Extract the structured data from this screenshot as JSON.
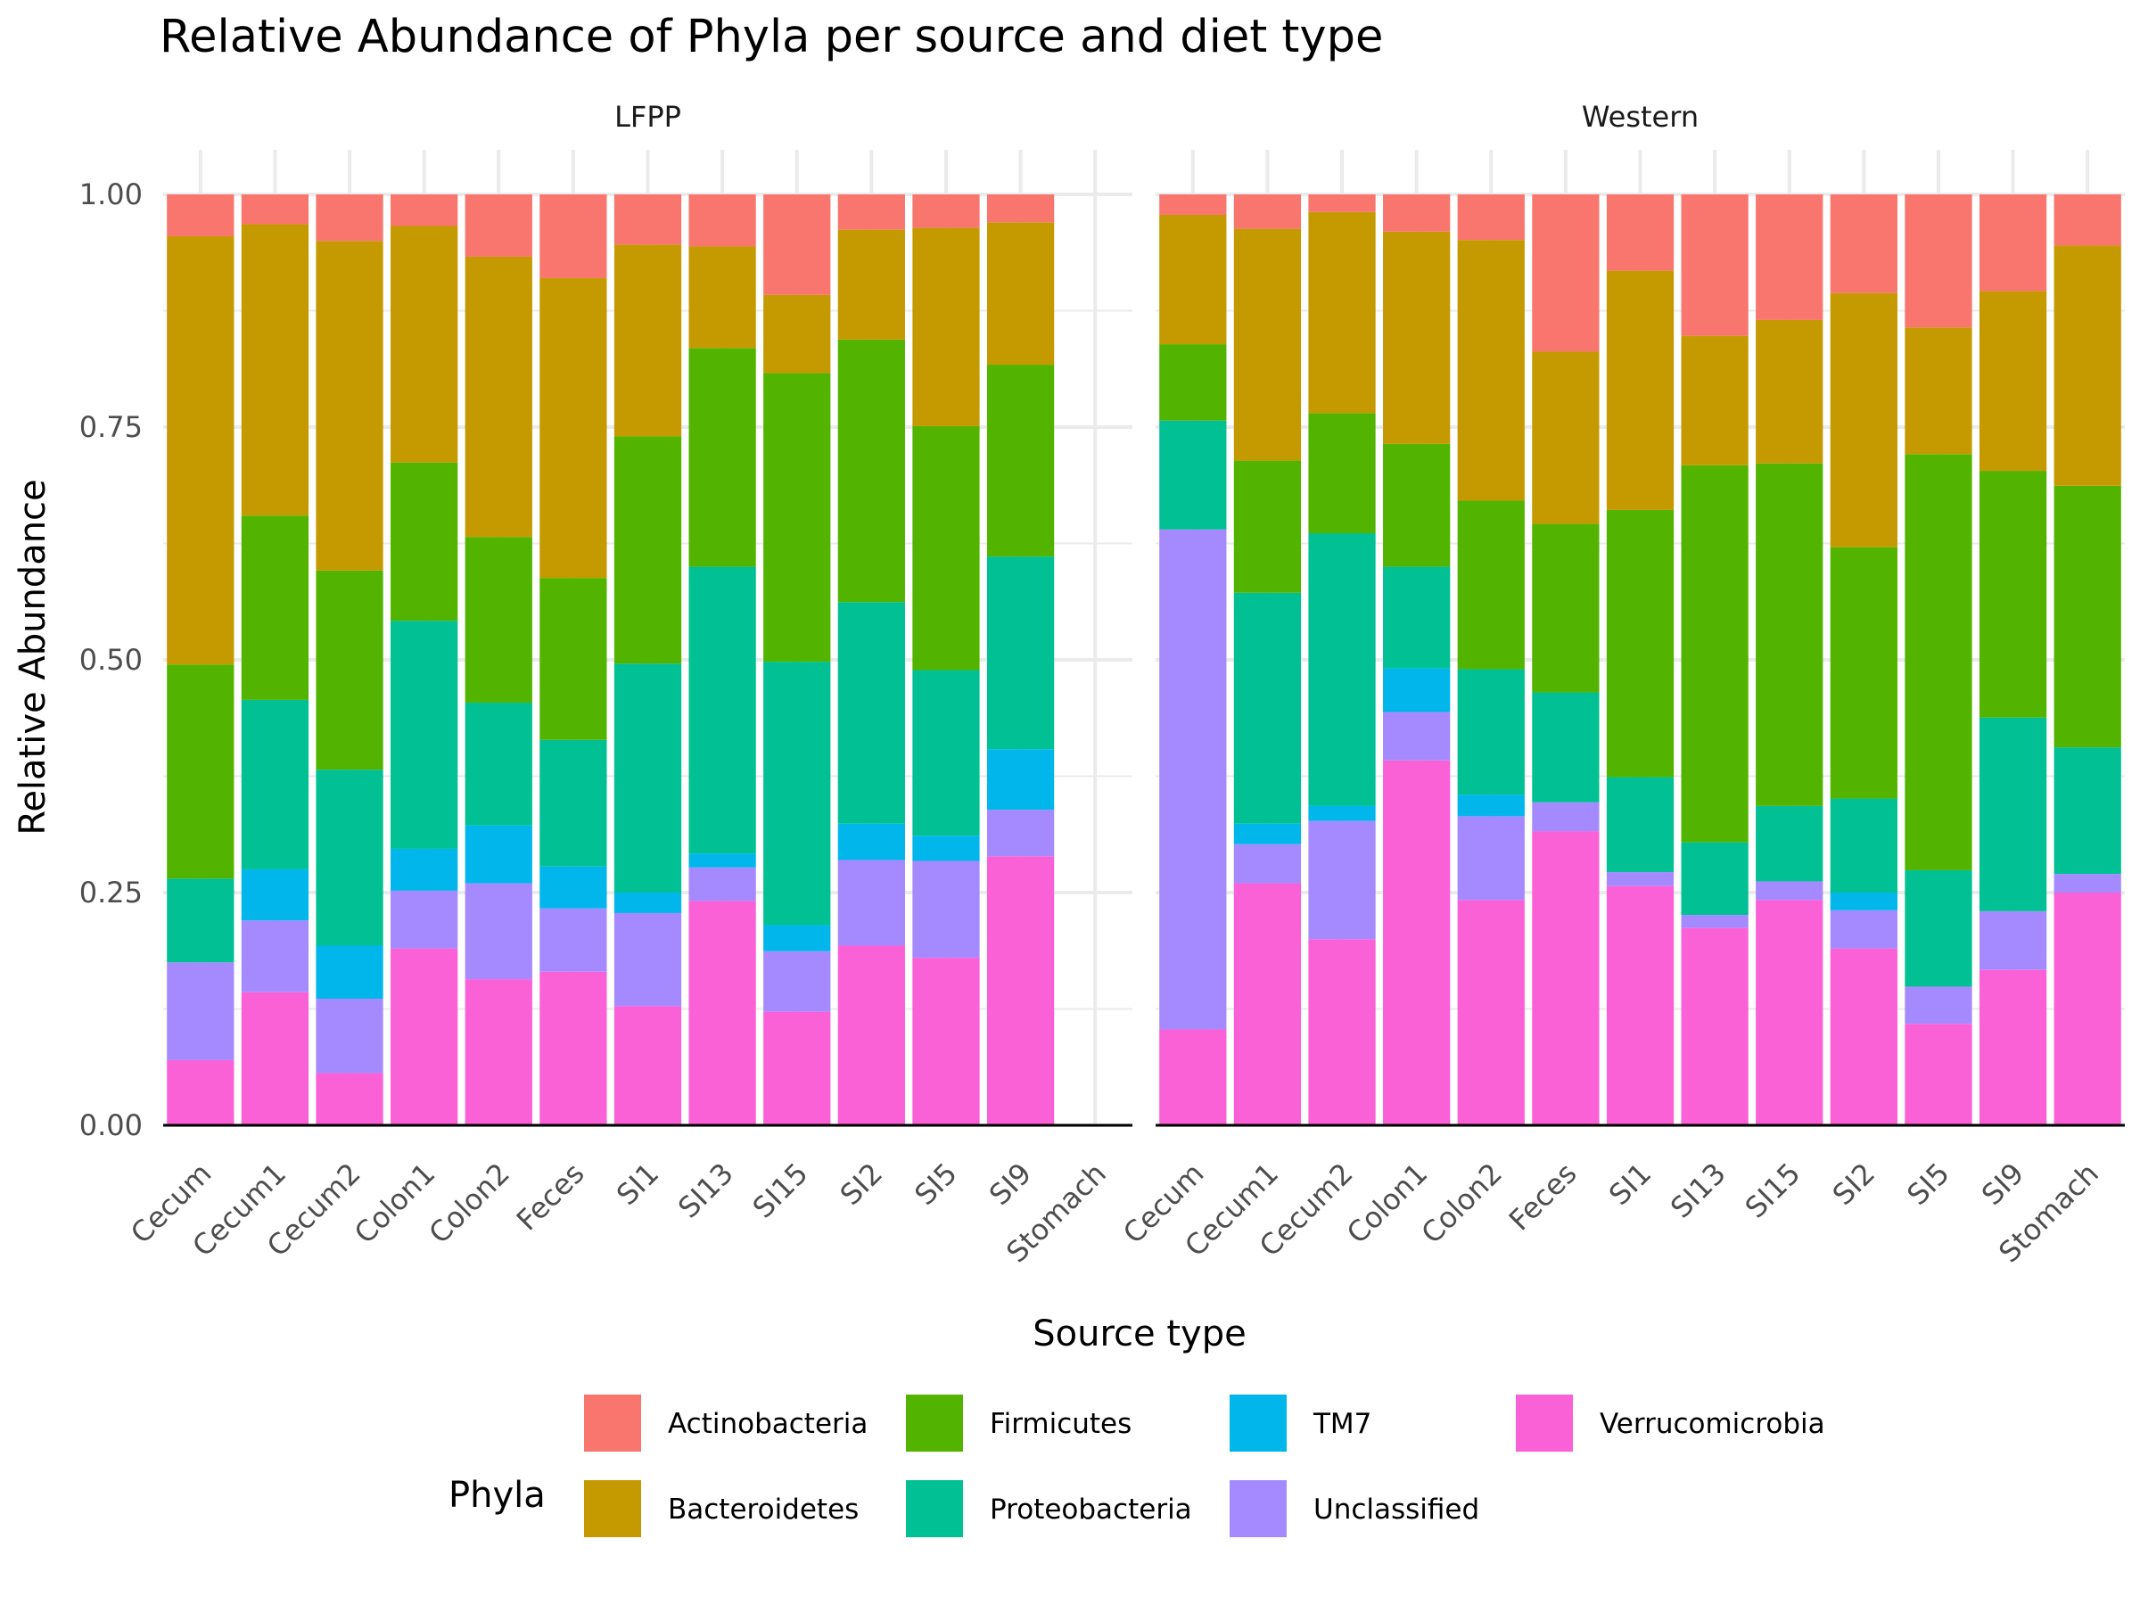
{
  "chart_data": {
    "type": "bar",
    "stacked": true,
    "title": "Relative Abundance of Phyla per source and diet type",
    "xlabel": "Source type",
    "ylabel": "Relative Abundance",
    "ylim": [
      0,
      1
    ],
    "yticks": [
      "0.00",
      "0.25",
      "0.50",
      "0.75",
      "1.00"
    ],
    "grid": true,
    "legend": {
      "title": "Phyla",
      "position": "bottom",
      "items": [
        {
          "name": "Actinobacteria",
          "color": "#F8766D"
        },
        {
          "name": "Bacteroidetes",
          "color": "#C49A00"
        },
        {
          "name": "Firmicutes",
          "color": "#53B400"
        },
        {
          "name": "Proteobacteria",
          "color": "#00C094"
        },
        {
          "name": "TM7",
          "color": "#00B6EB"
        },
        {
          "name": "Unclassified",
          "color": "#A58AFF"
        },
        {
          "name": "Verrucomicrobia",
          "color": "#FB61D7"
        }
      ]
    },
    "categories": [
      "Cecum",
      "Cecum1",
      "Cecum2",
      "Colon1",
      "Colon2",
      "Feces",
      "SI1",
      "SI13",
      "SI15",
      "SI2",
      "SI5",
      "SI9",
      "Stomach"
    ],
    "stack_order_bottom_to_top": [
      "Verrucomicrobia",
      "Unclassified",
      "TM7",
      "Proteobacteria",
      "Firmicutes",
      "Bacteroidetes",
      "Actinobacteria"
    ],
    "panels": [
      {
        "name": "LFPP",
        "bars": [
          {
            "Verrucomicrobia": 0.07,
            "Unclassified": 0.105,
            "TM7": 0.0,
            "Proteobacteria": 0.09,
            "Firmicutes": 0.23,
            "Bacteroidetes": 0.46,
            "Actinobacteria": 0.045
          },
          {
            "Verrucomicrobia": 0.143,
            "Unclassified": 0.077,
            "TM7": 0.055,
            "Proteobacteria": 0.182,
            "Firmicutes": 0.198,
            "Bacteroidetes": 0.313,
            "Actinobacteria": 0.032
          },
          {
            "Verrucomicrobia": 0.056,
            "Unclassified": 0.08,
            "TM7": 0.057,
            "Proteobacteria": 0.189,
            "Firmicutes": 0.214,
            "Bacteroidetes": 0.354,
            "Actinobacteria": 0.05
          },
          {
            "Verrucomicrobia": 0.19,
            "Unclassified": 0.062,
            "TM7": 0.045,
            "Proteobacteria": 0.245,
            "Firmicutes": 0.17,
            "Bacteroidetes": 0.254,
            "Actinobacteria": 0.034
          },
          {
            "Verrucomicrobia": 0.157,
            "Unclassified": 0.103,
            "TM7": 0.062,
            "Proteobacteria": 0.132,
            "Firmicutes": 0.178,
            "Bacteroidetes": 0.301,
            "Actinobacteria": 0.067
          },
          {
            "Verrucomicrobia": 0.165,
            "Unclassified": 0.068,
            "TM7": 0.045,
            "Proteobacteria": 0.136,
            "Firmicutes": 0.174,
            "Bacteroidetes": 0.322,
            "Actinobacteria": 0.09
          },
          {
            "Verrucomicrobia": 0.128,
            "Unclassified": 0.1,
            "TM7": 0.022,
            "Proteobacteria": 0.246,
            "Firmicutes": 0.244,
            "Bacteroidetes": 0.206,
            "Actinobacteria": 0.054
          },
          {
            "Verrucomicrobia": 0.241,
            "Unclassified": 0.036,
            "TM7": 0.015,
            "Proteobacteria": 0.308,
            "Firmicutes": 0.235,
            "Bacteroidetes": 0.109,
            "Actinobacteria": 0.056
          },
          {
            "Verrucomicrobia": 0.122,
            "Unclassified": 0.065,
            "TM7": 0.028,
            "Proteobacteria": 0.283,
            "Firmicutes": 0.31,
            "Bacteroidetes": 0.084,
            "Actinobacteria": 0.108
          },
          {
            "Verrucomicrobia": 0.193,
            "Unclassified": 0.092,
            "TM7": 0.039,
            "Proteobacteria": 0.238,
            "Firmicutes": 0.282,
            "Bacteroidetes": 0.118,
            "Actinobacteria": 0.038
          },
          {
            "Verrucomicrobia": 0.18,
            "Unclassified": 0.104,
            "TM7": 0.027,
            "Proteobacteria": 0.178,
            "Firmicutes": 0.262,
            "Bacteroidetes": 0.213,
            "Actinobacteria": 0.036
          },
          {
            "Verrucomicrobia": 0.289,
            "Unclassified": 0.05,
            "TM7": 0.065,
            "Proteobacteria": 0.207,
            "Firmicutes": 0.206,
            "Bacteroidetes": 0.153,
            "Actinobacteria": 0.03
          },
          null
        ]
      },
      {
        "name": "Western",
        "bars": [
          {
            "Verrucomicrobia": 0.103,
            "Unclassified": 0.537,
            "TM7": 0.0,
            "Proteobacteria": 0.117,
            "Firmicutes": 0.082,
            "Bacteroidetes": 0.139,
            "Actinobacteria": 0.022
          },
          {
            "Verrucomicrobia": 0.26,
            "Unclassified": 0.042,
            "TM7": 0.022,
            "Proteobacteria": 0.248,
            "Firmicutes": 0.142,
            "Bacteroidetes": 0.249,
            "Actinobacteria": 0.037
          },
          {
            "Verrucomicrobia": 0.2,
            "Unclassified": 0.127,
            "TM7": 0.016,
            "Proteobacteria": 0.293,
            "Firmicutes": 0.129,
            "Bacteroidetes": 0.216,
            "Actinobacteria": 0.019
          },
          {
            "Verrucomicrobia": 0.392,
            "Unclassified": 0.052,
            "TM7": 0.047,
            "Proteobacteria": 0.109,
            "Firmicutes": 0.132,
            "Bacteroidetes": 0.228,
            "Actinobacteria": 0.04
          },
          {
            "Verrucomicrobia": 0.242,
            "Unclassified": 0.09,
            "TM7": 0.023,
            "Proteobacteria": 0.135,
            "Firmicutes": 0.181,
            "Bacteroidetes": 0.28,
            "Actinobacteria": 0.049
          },
          {
            "Verrucomicrobia": 0.316,
            "Unclassified": 0.031,
            "TM7": 0.0,
            "Proteobacteria": 0.118,
            "Firmicutes": 0.181,
            "Bacteroidetes": 0.185,
            "Actinobacteria": 0.169
          },
          {
            "Verrucomicrobia": 0.257,
            "Unclassified": 0.015,
            "TM7": 0.0,
            "Proteobacteria": 0.102,
            "Firmicutes": 0.287,
            "Bacteroidetes": 0.257,
            "Actinobacteria": 0.082
          },
          {
            "Verrucomicrobia": 0.212,
            "Unclassified": 0.014,
            "TM7": 0.0,
            "Proteobacteria": 0.078,
            "Firmicutes": 0.405,
            "Bacteroidetes": 0.139,
            "Actinobacteria": 0.152
          },
          {
            "Verrucomicrobia": 0.242,
            "Unclassified": 0.02,
            "TM7": 0.0,
            "Proteobacteria": 0.081,
            "Firmicutes": 0.368,
            "Bacteroidetes": 0.154,
            "Actinobacteria": 0.135
          },
          {
            "Verrucomicrobia": 0.19,
            "Unclassified": 0.041,
            "TM7": 0.019,
            "Proteobacteria": 0.101,
            "Firmicutes": 0.27,
            "Bacteroidetes": 0.273,
            "Actinobacteria": 0.106
          },
          {
            "Verrucomicrobia": 0.109,
            "Unclassified": 0.04,
            "TM7": 0.0,
            "Proteobacteria": 0.125,
            "Firmicutes": 0.447,
            "Bacteroidetes": 0.136,
            "Actinobacteria": 0.143
          },
          {
            "Verrucomicrobia": 0.167,
            "Unclassified": 0.063,
            "TM7": 0.0,
            "Proteobacteria": 0.208,
            "Firmicutes": 0.265,
            "Bacteroidetes": 0.193,
            "Actinobacteria": 0.104
          },
          {
            "Verrucomicrobia": 0.25,
            "Unclassified": 0.02,
            "TM7": 0.0,
            "Proteobacteria": 0.136,
            "Firmicutes": 0.281,
            "Bacteroidetes": 0.258,
            "Actinobacteria": 0.055
          }
        ]
      }
    ]
  }
}
